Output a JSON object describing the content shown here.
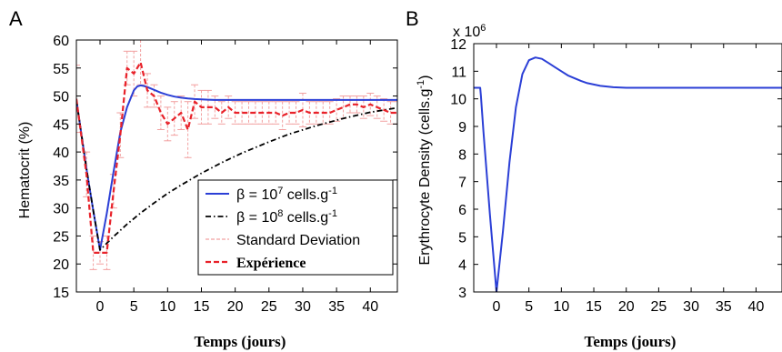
{
  "chart_data": [
    {
      "type": "line",
      "panel_label": "A",
      "xlabel": "Temps (jours)",
      "ylabel": "Hematocrit (%)",
      "xlim": [
        -3.5,
        44
      ],
      "ylim": [
        15,
        60
      ],
      "xticks": [
        0,
        5,
        10,
        15,
        20,
        25,
        30,
        35,
        40
      ],
      "yticks": [
        15,
        20,
        25,
        30,
        35,
        40,
        45,
        50,
        55,
        60
      ],
      "grid": false,
      "legend_position": "lower-right",
      "legend": [
        {
          "label": "β = 10",
          "sup": "7",
          "suffix": " cells.g",
          "sup2": "-1"
        },
        {
          "label": "β = 10",
          "sup": "8",
          "suffix": " cells.g",
          "sup2": "-1"
        },
        {
          "label": "Standard Deviation",
          "sup": "",
          "suffix": "",
          "sup2": ""
        },
        {
          "label": "Expérience",
          "sup": "",
          "suffix": "",
          "sup2": ""
        }
      ],
      "series": [
        {
          "style": "solid",
          "color": "#2b3fd6",
          "x": [
            -3.5,
            -2,
            -1,
            0,
            1,
            2,
            3,
            4,
            5,
            5.5,
            6,
            6.5,
            7,
            8,
            9,
            10,
            11,
            12,
            13,
            14,
            15,
            16,
            17,
            18,
            20,
            22,
            25,
            30,
            35,
            40,
            44
          ],
          "y": [
            49.3,
            37,
            29.5,
            22.5,
            29,
            36.5,
            43.5,
            48,
            51,
            51.7,
            51.9,
            51.8,
            51.6,
            51.1,
            50.6,
            50.2,
            49.9,
            49.7,
            49.55,
            49.45,
            49.4,
            49.35,
            49.3,
            49.3,
            49.3,
            49.3,
            49.3,
            49.3,
            49.3,
            49.3,
            49.3
          ]
        },
        {
          "style": "dashdot",
          "color": "#000000",
          "x": [
            -3.5,
            -2,
            -1,
            0,
            2,
            4,
            6,
            8,
            10,
            12,
            15,
            18,
            21,
            25,
            28,
            32,
            36,
            40,
            44
          ],
          "y": [
            49.3,
            37,
            29.5,
            22.5,
            24.9,
            27.1,
            29.1,
            30.9,
            32.6,
            34.1,
            36.2,
            38.1,
            39.8,
            41.8,
            43.2,
            44.7,
            46.0,
            47.1,
            47.9
          ]
        },
        {
          "style": "dashed",
          "color": "#e8222a",
          "x": [
            -3.5,
            -2,
            -1,
            0,
            1,
            2,
            3,
            4,
            5,
            6,
            7,
            8,
            9,
            10,
            11,
            12,
            13,
            14,
            15,
            16,
            17,
            18,
            19,
            20,
            21,
            22,
            23,
            24,
            25,
            26,
            27,
            28,
            29,
            30,
            31,
            32,
            33,
            34,
            35,
            36,
            37,
            38,
            39,
            40,
            41,
            42,
            43,
            44
          ],
          "y": [
            49.5,
            36,
            22,
            22,
            22,
            33,
            43,
            55,
            54,
            56,
            51,
            50,
            47,
            45,
            46,
            47,
            44,
            49,
            48,
            48,
            48,
            47,
            48,
            47,
            47,
            47,
            47,
            47,
            47,
            47,
            46.5,
            47,
            47,
            47.5,
            47,
            47,
            47,
            47,
            47.5,
            48,
            48.5,
            48.5,
            48,
            48.5,
            48,
            47.5,
            47,
            47
          ]
        }
      ],
      "error_bars": {
        "color": "#f2a0a0",
        "x": [
          -3.5,
          -2,
          -1,
          0,
          1,
          2,
          3,
          4,
          5,
          6,
          7,
          8,
          9,
          10,
          11,
          12,
          13,
          14,
          15,
          16,
          17,
          18,
          19,
          20,
          21,
          22,
          23,
          24,
          25,
          26,
          27,
          28,
          29,
          30,
          31,
          32,
          33,
          34,
          35,
          36,
          37,
          38,
          39,
          40,
          41,
          42,
          43,
          44
        ],
        "y": [
          49.5,
          36,
          22,
          22,
          22,
          33,
          43,
          55,
          54,
          56,
          51,
          50,
          47,
          45,
          46,
          47,
          44,
          49,
          48,
          48,
          48,
          47,
          48,
          47,
          47,
          47,
          47,
          47,
          47,
          47,
          46.5,
          47,
          47,
          47.5,
          47,
          47,
          47,
          47,
          47.5,
          48,
          48.5,
          48.5,
          48,
          48.5,
          48,
          47.5,
          47,
          47
        ],
        "err": [
          6,
          4,
          3,
          2,
          3,
          3,
          4,
          3,
          4,
          4,
          3,
          2,
          3,
          3,
          3,
          3,
          5,
          3,
          3,
          3,
          2,
          2,
          2,
          2,
          2,
          2,
          2,
          2,
          2,
          2,
          2.5,
          2,
          2,
          3,
          2,
          2,
          2,
          2,
          2,
          2,
          1.5,
          1.5,
          2,
          2,
          2,
          2,
          2,
          2
        ]
      }
    },
    {
      "type": "line",
      "panel_label": "B",
      "xlabel": "Temps (jours)",
      "ylabel": "Erythrocyte Density (cells.g",
      "ylabel_sup": "-1",
      "ylabel_tail": ")",
      "multiplier": "x 10",
      "multiplier_sup": "6",
      "xlim": [
        -3.5,
        44
      ],
      "ylim": [
        3,
        12
      ],
      "xticks": [
        0,
        5,
        10,
        15,
        20,
        25,
        30,
        35,
        40
      ],
      "yticks": [
        3,
        4,
        5,
        6,
        7,
        8,
        9,
        10,
        11,
        12
      ],
      "grid": false,
      "series": [
        {
          "style": "solid",
          "color": "#2b3fd6",
          "x": [
            -3.5,
            -2.5,
            -2.4,
            -2,
            -1,
            0,
            1,
            2,
            3,
            4,
            5,
            6,
            7,
            8,
            9,
            10,
            11,
            12,
            13,
            14,
            15,
            16,
            18,
            20,
            22,
            25,
            30,
            35,
            40,
            44
          ],
          "y": [
            10.4,
            10.4,
            10.1,
            8.8,
            5.8,
            3.0,
            5.2,
            7.7,
            9.7,
            10.9,
            11.4,
            11.5,
            11.45,
            11.3,
            11.15,
            11.0,
            10.85,
            10.75,
            10.65,
            10.57,
            10.52,
            10.47,
            10.42,
            10.4,
            10.4,
            10.4,
            10.4,
            10.4,
            10.4,
            10.4
          ]
        }
      ]
    }
  ]
}
